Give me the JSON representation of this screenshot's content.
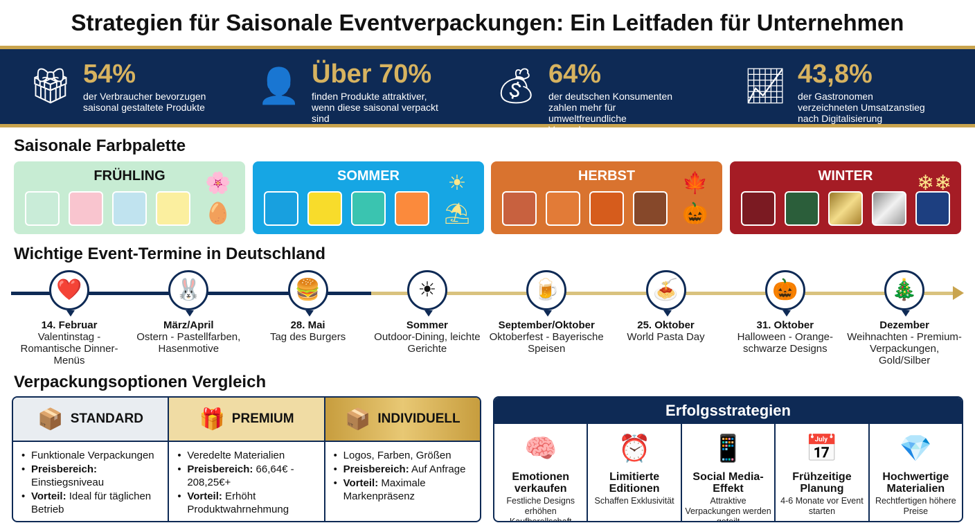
{
  "title": "Strategien für Saisonale Eventverpackungen: Ein Leitfaden für Unternehmen",
  "stats": [
    {
      "icon": "gift-icon",
      "value": "54%",
      "text": "der Verbraucher bevorzugen saisonal gestaltete Produkte"
    },
    {
      "icon": "person-gift-arrow-icon",
      "value": "Über 70%",
      "text": "finden Produkte attraktiver, wenn diese saisonal verpackt sind"
    },
    {
      "icon": "money-bag-hand-icon",
      "value": "64%",
      "text": "der deutschen Konsumenten zahlen mehr für umweltfreundliche Verpackungen"
    },
    {
      "icon": "store-growth-chart-icon",
      "value": "43,8%",
      "text": "der Gastronomen verzeichneten Umsatzanstieg nach Digitalisierung"
    }
  ],
  "palette": {
    "heading": "Saisonale Farbpalette",
    "seasons": [
      {
        "name": "FRÜHLING",
        "bg": "#c7ecd3",
        "text": "#111",
        "icon": "flower-easter-egg-icon",
        "colors": [
          "#c9ecd8",
          "#f9c5cf",
          "#c0e3ef",
          "#fbef9f"
        ]
      },
      {
        "name": "SOMMER",
        "bg": "#16a6e4",
        "text": "#fff",
        "icon": "sun-beach-umbrella-icon",
        "colors": [
          "#18a0df",
          "#f8dc2b",
          "#3ac4b0",
          "#fb8a3c"
        ]
      },
      {
        "name": "HERBST",
        "bg": "#d9732f",
        "text": "#fff",
        "icon": "leaves-pumpkin-icon",
        "colors": [
          "#c8613f",
          "#e27b37",
          "#d65c1c",
          "#86482a"
        ]
      },
      {
        "name": "WINTER",
        "bg": "#a51c25",
        "text": "#fff",
        "icon": "snowflake-icon",
        "colors": [
          "#7b1a22",
          "#2b5e3a",
          "#c9a44e",
          "#c8c8c8",
          "#1d3f80"
        ]
      }
    ]
  },
  "timeline": {
    "heading": "Wichtige Event-Termine in Deutschland",
    "events": [
      {
        "date": "14. Februar",
        "text": "Valentinstag - Romantische Dinner-Menüs",
        "icon": "heart-icon",
        "glyph": "❤️"
      },
      {
        "date": "März/April",
        "text": "Ostern - Pastellfarben, Hasenmotive",
        "icon": "bunny-icon",
        "glyph": "🐰"
      },
      {
        "date": "28. Mai",
        "text": "Tag des Burgers",
        "icon": "burger-icon",
        "glyph": "🍔"
      },
      {
        "date": "Sommer",
        "text": "Outdoor-Dining, leichte Gerichte",
        "icon": "sun-table-icon",
        "glyph": "☀"
      },
      {
        "date": "September/Oktober",
        "text": "Oktoberfest - Bayerische Speisen",
        "icon": "beer-mug-icon",
        "glyph": "🍺"
      },
      {
        "date": "25. Oktober",
        "text": "World Pasta Day",
        "icon": "pasta-bowl-icon",
        "glyph": "🍝"
      },
      {
        "date": "31. Oktober",
        "text": "Halloween - Orange-schwarze Designs",
        "icon": "jack-o-lantern-icon",
        "glyph": "🎃"
      },
      {
        "date": "Dezember",
        "text": "Weihnachten - Premium-Verpackungen, Gold/Silber",
        "icon": "christmas-tree-icon",
        "glyph": "🎄"
      }
    ]
  },
  "comparison": {
    "heading": "Verpackungsoptionen Vergleich",
    "options": [
      {
        "name": "STANDARD",
        "icon": "box-icon",
        "bg": "#e9edf1",
        "items": [
          {
            "b": "",
            "t": "Funktionale Verpackungen"
          },
          {
            "b": "Preisbereich:",
            "t": " Einstiegsniveau"
          },
          {
            "b": "Vorteil:",
            "t": " Ideal für täglichen Betrieb"
          }
        ]
      },
      {
        "name": "PREMIUM",
        "icon": "gift-box-icon",
        "bg": "#f0dca4",
        "items": [
          {
            "b": "",
            "t": "Veredelte Materialien"
          },
          {
            "b": "Preisbereich:",
            "t": " 66,64€ - 208,25€+"
          },
          {
            "b": "Vorteil:",
            "t": " Erhöht Produktwahrnehmung"
          }
        ]
      },
      {
        "name": "INDIVIDUELL",
        "icon": "custom-box-icon",
        "bg": "#d2ac52",
        "items": [
          {
            "b": "",
            "t": "Logos, Farben, Größen"
          },
          {
            "b": "Preisbereich:",
            "t": " Auf Anfrage"
          },
          {
            "b": "Vorteil:",
            "t": " Maximale Markenpräsenz"
          }
        ]
      }
    ]
  },
  "strategies": {
    "heading": "Erfolgsstrategien",
    "items": [
      {
        "title": "Emotionen verkaufen",
        "text": "Festliche Designs erhöhen Kaufberellschaft",
        "icon": "head-heart-icon",
        "glyph": "🧠"
      },
      {
        "title": "Limitierte Editionen",
        "text": "Schaffen Exklusivität",
        "icon": "clock-star-icon",
        "glyph": "⏰"
      },
      {
        "title": "Social Media-Effekt",
        "text": "Attraktive Verpackungen werden geteilt",
        "icon": "phone-share-icon",
        "glyph": "📱"
      },
      {
        "title": "Frühzeitige Planung",
        "text": "4-6 Monate vor Event starten",
        "icon": "calendar-clock-icon",
        "glyph": "📅"
      },
      {
        "title": "Hochwertige Materialien",
        "text": "Rechtfertigen höhere Preise",
        "icon": "diamond-tag-icon",
        "glyph": "💎"
      }
    ]
  }
}
